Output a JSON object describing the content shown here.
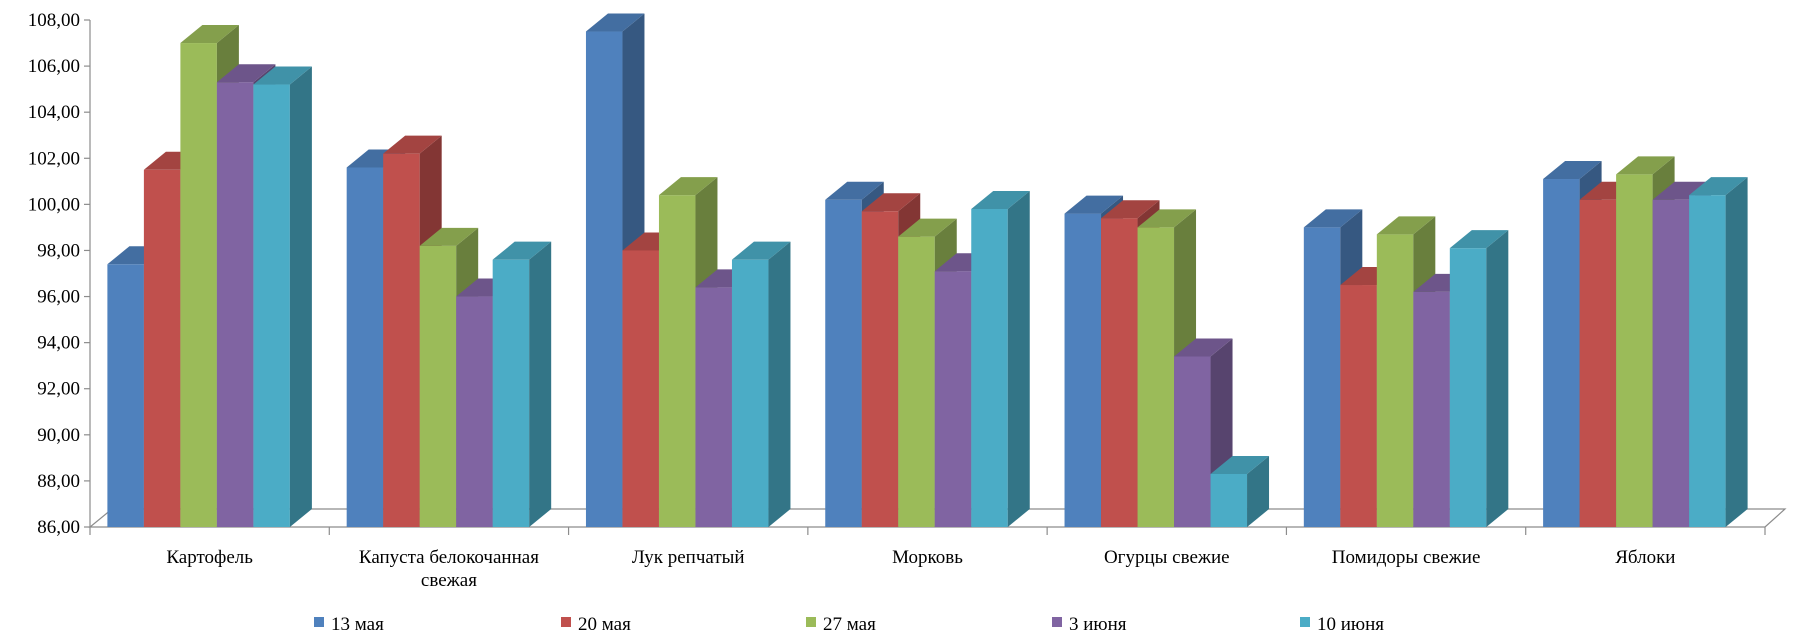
{
  "chart_data": {
    "type": "bar",
    "title": "",
    "xlabel": "",
    "ylabel": "",
    "ylim": [
      86,
      108
    ],
    "yticks": [
      "86,00",
      "88,00",
      "90,00",
      "92,00",
      "94,00",
      "96,00",
      "98,00",
      "100,00",
      "102,00",
      "104,00",
      "106,00",
      "108,00"
    ],
    "categories": [
      [
        "Картофель"
      ],
      [
        "Капуста белокочанная",
        "свежая"
      ],
      [
        "Лук репчатый"
      ],
      [
        "Морковь"
      ],
      [
        "Огурцы свежие"
      ],
      [
        "Помидоры свежие"
      ],
      [
        "Яблоки"
      ]
    ],
    "series": [
      {
        "name": "13 мая",
        "color": "#4F81BD",
        "values": [
          97.4,
          101.6,
          107.5,
          100.2,
          99.6,
          99.0,
          101.1
        ]
      },
      {
        "name": "20 мая",
        "color": "#C0504D",
        "values": [
          101.5,
          102.2,
          98.0,
          99.7,
          99.4,
          96.5,
          100.2
        ]
      },
      {
        "name": "27 мая",
        "color": "#9BBB59",
        "values": [
          107.0,
          98.2,
          100.4,
          98.6,
          99.0,
          98.7,
          101.3
        ]
      },
      {
        "name": "3 июня",
        "color": "#8064A2",
        "values": [
          105.3,
          96.0,
          96.4,
          97.1,
          93.4,
          96.2,
          100.2
        ]
      },
      {
        "name": "10 июня",
        "color": "#4BACC6",
        "values": [
          105.2,
          97.6,
          97.6,
          99.8,
          88.3,
          98.1,
          100.4
        ]
      }
    ],
    "grid": false,
    "legend": "bottom"
  }
}
